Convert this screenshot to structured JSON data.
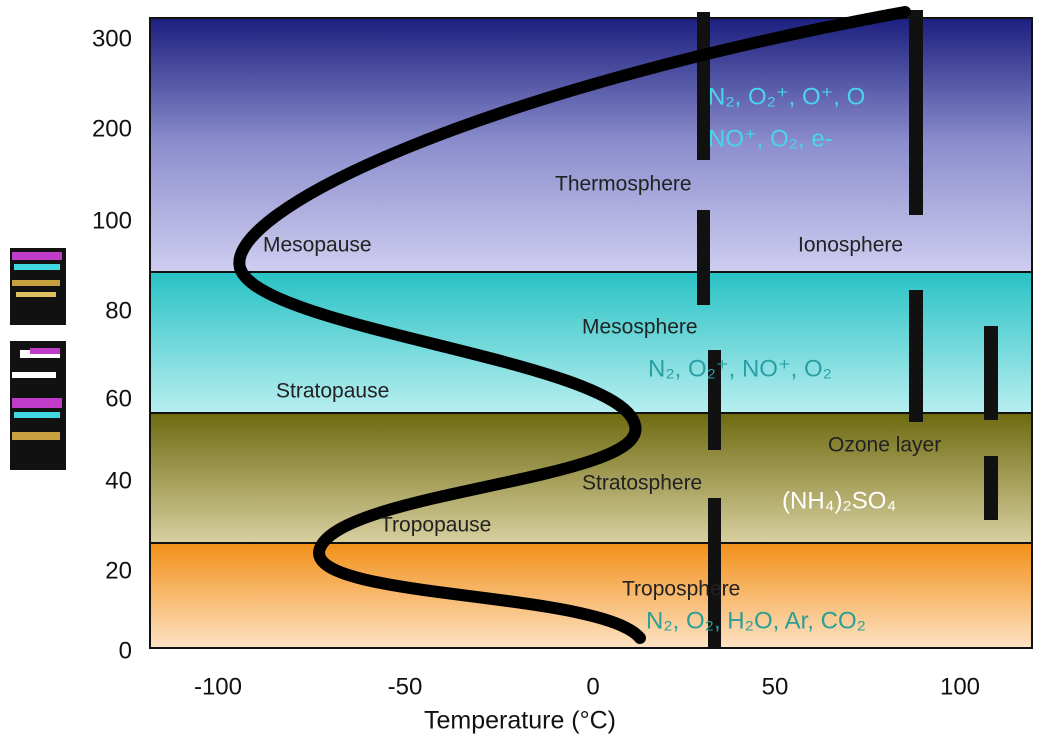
{
  "axis": {
    "y_ticks": [
      300,
      200,
      100,
      80,
      60,
      40,
      20,
      0
    ],
    "x_ticks": [
      -100,
      -50,
      0,
      50,
      100
    ],
    "x_label": "Temperature (°C)"
  },
  "labels": {
    "thermosphere": "Thermosphere",
    "mesopause": "Mesopause",
    "ionosphere": "Ionosphere",
    "mesosphere": "Mesosphere",
    "stratopause": "Stratopause",
    "ozone_layer": "Ozone layer",
    "stratosphere": "Stratosphere",
    "tropopause": "Tropopause",
    "troposphere": "Troposphere"
  },
  "species": {
    "thermosphere_1": "N₂, O₂⁺, O⁺, O",
    "thermosphere_2": "NO⁺, O₂, e-",
    "mesosphere": "N₂, O₂⁺, NO⁺, O₂",
    "stratosphere": "(NH₄)₂SO₄",
    "troposphere": "N₂, O₂, H₂O, Ar, CO₂"
  }
}
